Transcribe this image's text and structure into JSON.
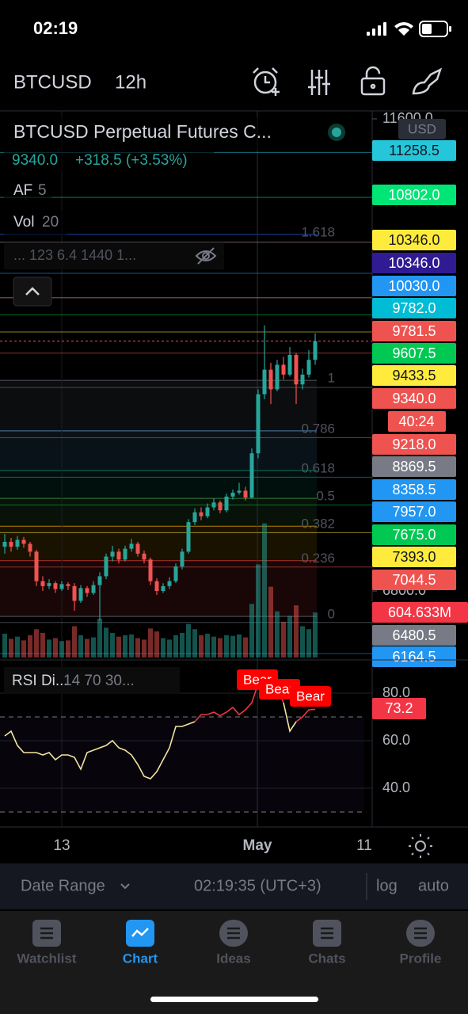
{
  "status_bar": {
    "time": "02:19"
  },
  "header": {
    "symbol": "BTCUSD",
    "interval": "12h"
  },
  "legend": {
    "title": "BTCUSD Perpetual Futures C...",
    "last": "9340.0",
    "change": "+318.5 (+3.53%)",
    "indicators": [
      {
        "name": "AF",
        "params": "5"
      },
      {
        "name": "Vol",
        "params": "20"
      }
    ],
    "hidden": "... 123 6.4 1440 1..."
  },
  "chart_data": {
    "type": "candlestick",
    "ylim": [
      6124,
      11600
    ],
    "yticks": [
      {
        "value": 11600,
        "label": "11600.0"
      },
      {
        "value": 6800,
        "label": "6800.0"
      }
    ],
    "currency": "USD",
    "up_color": "#26a69a",
    "down_color": "#ef5350",
    "candles": [
      [
        7250,
        7380,
        7180,
        7300
      ],
      [
        7300,
        7340,
        7200,
        7250
      ],
      [
        7250,
        7360,
        7220,
        7320
      ],
      [
        7320,
        7350,
        7240,
        7280
      ],
      [
        7280,
        7300,
        7150,
        7200
      ],
      [
        7200,
        7220,
        6850,
        6900
      ],
      [
        6900,
        6950,
        6800,
        6850
      ],
      [
        6850,
        6920,
        6820,
        6880
      ],
      [
        6880,
        6900,
        6780,
        6820
      ],
      [
        6820,
        6900,
        6800,
        6870
      ],
      [
        6870,
        6890,
        6810,
        6850
      ],
      [
        6850,
        6880,
        6600,
        6700
      ],
      [
        6700,
        6860,
        6680,
        6830
      ],
      [
        6830,
        6850,
        6740,
        6780
      ],
      [
        6780,
        6900,
        6760,
        6860
      ],
      [
        6860,
        6990,
        6500,
        6950
      ],
      [
        6950,
        7180,
        6920,
        7150
      ],
      [
        7150,
        7260,
        7100,
        7200
      ],
      [
        7200,
        7230,
        7080,
        7120
      ],
      [
        7120,
        7260,
        7100,
        7230
      ],
      [
        7230,
        7330,
        7200,
        7280
      ],
      [
        7280,
        7300,
        7150,
        7180
      ],
      [
        7180,
        7210,
        7080,
        7120
      ],
      [
        7120,
        7140,
        6860,
        6900
      ],
      [
        6900,
        6930,
        6760,
        6800
      ],
      [
        6800,
        6880,
        6780,
        6850
      ],
      [
        6850,
        6940,
        6820,
        6900
      ],
      [
        6900,
        7080,
        6880,
        7050
      ],
      [
        7050,
        7230,
        7020,
        7200
      ],
      [
        7200,
        7530,
        7180,
        7500
      ],
      [
        7500,
        7640,
        7470,
        7600
      ],
      [
        7600,
        7650,
        7520,
        7560
      ],
      [
        7560,
        7690,
        7540,
        7650
      ],
      [
        7650,
        7740,
        7620,
        7700
      ],
      [
        7700,
        7720,
        7590,
        7620
      ],
      [
        7620,
        7790,
        7600,
        7760
      ],
      [
        7760,
        7830,
        7730,
        7800
      ],
      [
        7800,
        7900,
        7780,
        7820
      ],
      [
        7820,
        7860,
        7720,
        7750
      ],
      [
        7750,
        8250,
        7740,
        8200
      ],
      [
        8200,
        8850,
        8150,
        8800
      ],
      [
        8800,
        9500,
        8750,
        9050
      ],
      [
        9050,
        9120,
        8700,
        8850
      ],
      [
        8850,
        9150,
        8830,
        9100
      ],
      [
        9100,
        9180,
        8950,
        9000
      ],
      [
        9000,
        9280,
        8980,
        9200
      ],
      [
        9200,
        9220,
        8700,
        8900
      ],
      [
        8900,
        9060,
        8850,
        9000
      ],
      [
        9000,
        9250,
        8970,
        9150
      ],
      [
        9150,
        9420,
        9100,
        9340
      ]
    ],
    "volume": {
      "ylim": [
        0,
        7230
      ],
      "values": [
        320,
        250,
        280,
        230,
        300,
        380,
        330,
        240,
        260,
        220,
        230,
        420,
        300,
        250,
        270,
        520,
        400,
        330,
        280,
        300,
        310,
        260,
        240,
        390,
        350,
        260,
        240,
        300,
        330,
        450,
        380,
        300,
        320,
        280,
        260,
        300,
        290,
        310,
        270,
        720,
        1250,
        1800,
        950,
        620,
        480,
        560,
        700,
        420,
        380,
        604.633
      ]
    },
    "volume_label": {
      "value": 604.633,
      "label": "604.633M",
      "color": "#f23645"
    },
    "price_lines": [
      {
        "value": 11258.5,
        "label": "11258.5",
        "color": "#26c6da"
      },
      {
        "value": 10802,
        "label": "10802.0",
        "color": "#00e676"
      },
      {
        "value": 10346,
        "label": "10346.0",
        "color": "#ffeb3b"
      },
      {
        "value": 10346,
        "label": "10346.0",
        "color": "#311b92"
      },
      {
        "value": 10030,
        "label": "10030.0",
        "color": "#2196f3"
      },
      {
        "value": 9782,
        "label": "9782.0",
        "color": "#00bcd4"
      },
      {
        "value": 9781.5,
        "label": "9781.5",
        "color": "#ef5350"
      },
      {
        "value": 9607.5,
        "label": "9607.5",
        "color": "#00c853"
      },
      {
        "value": 9433.5,
        "label": "9433.5",
        "color": "#ffeb3b"
      },
      {
        "value": 9340,
        "label": "9340.0",
        "color": "#ef5350"
      },
      {
        "value": 9218,
        "label": "9218.0",
        "color": "#ef5350"
      },
      {
        "value": 8869.5,
        "label": "8869.5",
        "color": "#787b86"
      },
      {
        "value": 8358.5,
        "label": "8358.5",
        "color": "#2196f3"
      },
      {
        "value": 7957,
        "label": "7957.0",
        "color": "#2196f3"
      },
      {
        "value": 7675,
        "label": "7675.0",
        "color": "#00c853"
      },
      {
        "value": 7393,
        "label": "7393.0",
        "color": "#ffeb3b"
      },
      {
        "value": 7044.5,
        "label": "7044.5",
        "color": "#ef5350"
      },
      {
        "value": 6480.5,
        "label": "6480.5",
        "color": "#787b86"
      },
      {
        "value": 6164.5,
        "label": "6164.5",
        "color": "#2196f3"
      }
    ],
    "countdown": "40:24",
    "fib": {
      "low": 6542,
      "high": 8942,
      "levels": [
        {
          "value": 0,
          "color": "#787b86"
        },
        {
          "value": 0.236,
          "color": "#f23645"
        },
        {
          "value": 0.382,
          "color": "#ffb300"
        },
        {
          "value": 0.5,
          "color": "#4caf50"
        },
        {
          "value": 0.618,
          "color": "#089981"
        },
        {
          "value": 0.786,
          "color": "#64b5f6"
        },
        {
          "value": 1,
          "color": "#787b86"
        },
        {
          "value": 1.618,
          "color": "#2962ff"
        }
      ]
    },
    "xlabels": [
      "13",
      "May",
      "11"
    ]
  },
  "rsi": {
    "type": "line",
    "name": "RSI Di...",
    "params": "14 70 30...",
    "color": "#f3e3a0",
    "overbought_color": "#f23645",
    "values": [
      62,
      64,
      58,
      55,
      55,
      55,
      54,
      55,
      52,
      54,
      54,
      53,
      48,
      55,
      56,
      57,
      58,
      60,
      57,
      56,
      54,
      50,
      45,
      44,
      47,
      52,
      57,
      66,
      66,
      67,
      68,
      71,
      71,
      72,
      70.5,
      72,
      74,
      71,
      73,
      76,
      84,
      85,
      80,
      82,
      76,
      64,
      68,
      70,
      73,
      73.2
    ],
    "ylim": [
      25,
      90
    ],
    "yticks": [
      {
        "value": 80,
        "label": "80.0"
      },
      {
        "value": 60,
        "label": "60.0"
      },
      {
        "value": 40,
        "label": "40.0"
      }
    ],
    "bands": [
      30,
      70
    ],
    "last": {
      "value": 73.2,
      "label": "73.2"
    },
    "signals": [
      "Bear",
      "Bear",
      "Bear"
    ]
  },
  "bottom_bar": {
    "date_range": "Date Range",
    "clock": "02:19:35 (UTC+3)",
    "log": "log",
    "auto": "auto"
  },
  "tabs": [
    "Watchlist",
    "Chart",
    "Ideas",
    "Chats",
    "Profile"
  ],
  "active_tab": 1
}
